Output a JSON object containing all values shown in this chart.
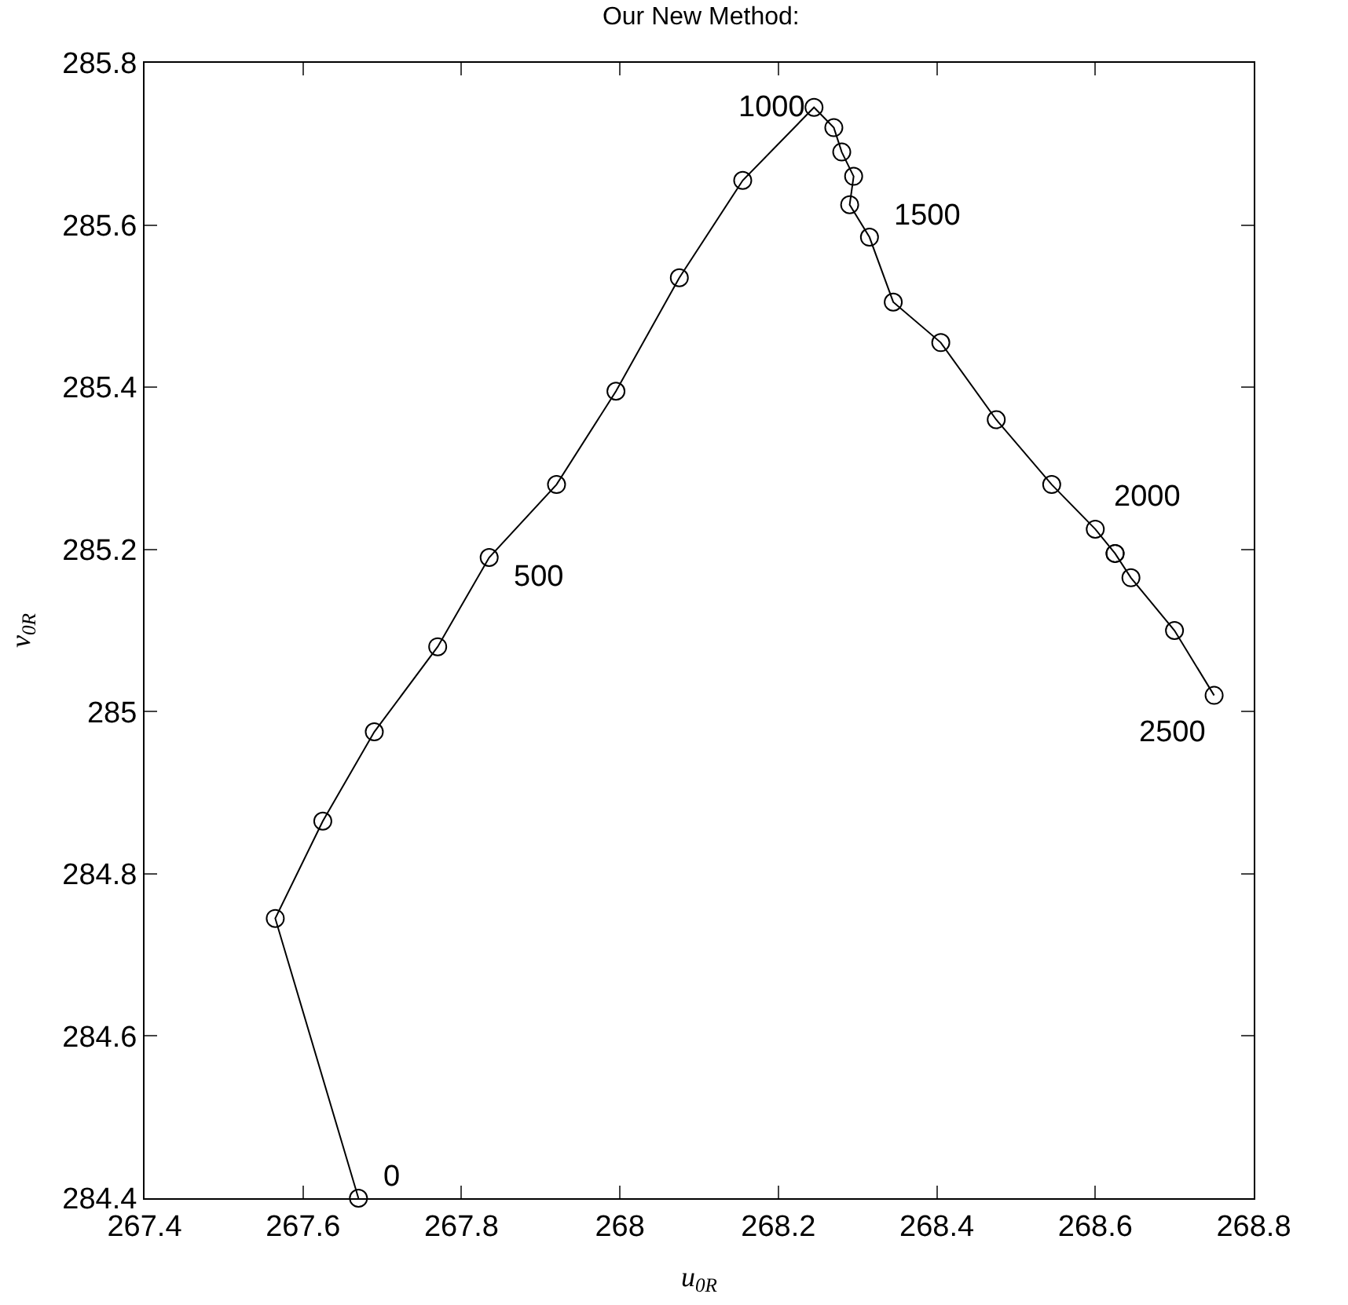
{
  "chart_data": {
    "type": "line",
    "title": "Our New Method:",
    "xlabel": "u$_{0R}$",
    "ylabel": "v$_{0R}$",
    "x": [
      267.67,
      267.565,
      267.625,
      267.69,
      267.77,
      267.835,
      267.92,
      267.995,
      268.075,
      268.155,
      268.245,
      268.27,
      268.28,
      268.295,
      268.29,
      268.315,
      268.345,
      268.405,
      268.475,
      268.545,
      268.6,
      268.625,
      268.625,
      268.645,
      268.7,
      268.75
    ],
    "series": [
      {
        "color": "#000000",
        "values": [
          284.4,
          284.745,
          284.865,
          284.975,
          285.08,
          285.19,
          285.28,
          285.395,
          285.535,
          285.655,
          285.745,
          285.72,
          285.69,
          285.66,
          285.625,
          285.585,
          285.505,
          285.455,
          285.36,
          285.28,
          285.225,
          285.195,
          285.195,
          285.165,
          285.1,
          285.02
        ]
      }
    ],
    "marker": "circle",
    "line_style": "solid",
    "xlim": [
      267.4,
      268.8
    ],
    "ylim": [
      284.4,
      285.8
    ],
    "xticks": [
      267.4,
      267.6,
      267.8,
      268,
      268.2,
      268.4,
      268.6,
      268.8
    ],
    "yticks": [
      284.4,
      284.6,
      284.8,
      285,
      285.2,
      285.4,
      285.6,
      285.8
    ],
    "annotations": [
      {
        "text": "0",
        "x": 267.67,
        "y": 284.4
      },
      {
        "text": "500",
        "x": 267.835,
        "y": 285.19
      },
      {
        "text": "1000",
        "x": 268.245,
        "y": 285.745
      },
      {
        "text": "1500",
        "x": 268.315,
        "y": 285.585
      },
      {
        "text": "2000",
        "x": 268.6,
        "y": 285.225
      },
      {
        "text": "2500",
        "x": 268.75,
        "y": 285.02
      }
    ]
  }
}
